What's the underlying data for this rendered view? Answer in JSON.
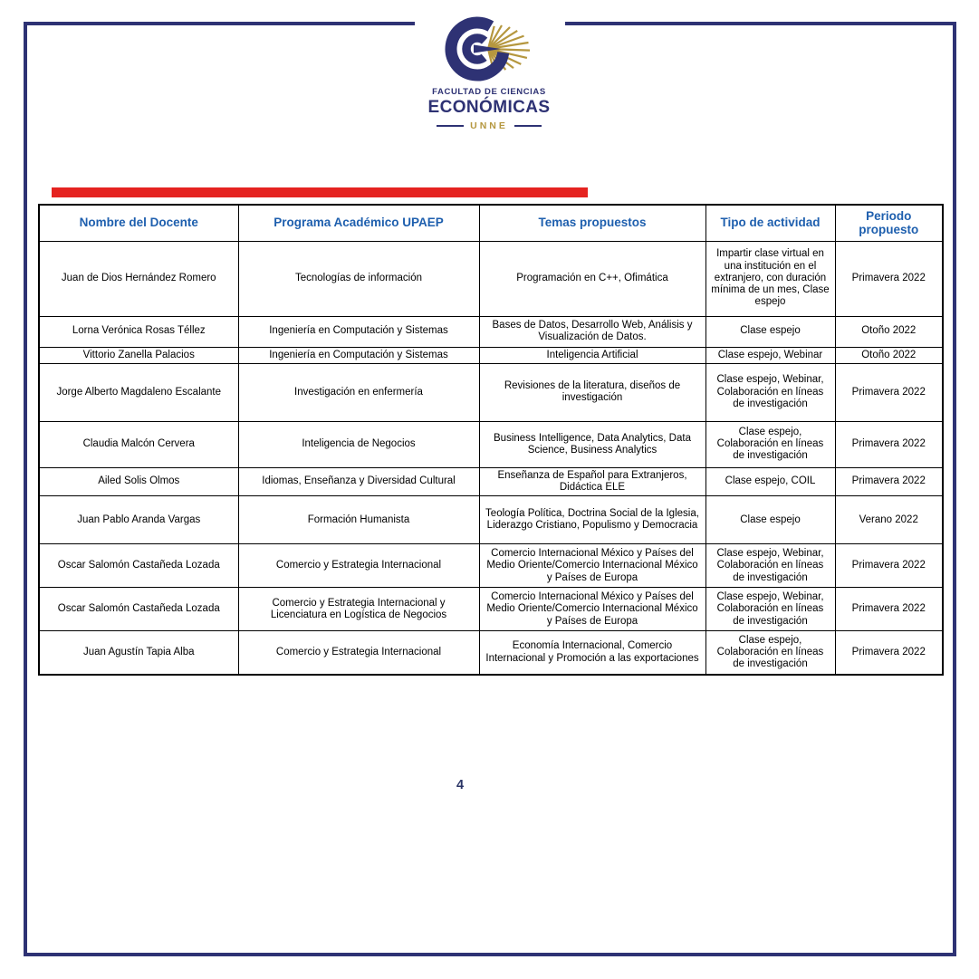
{
  "logo": {
    "line1": "FACULTAD DE CIENCIAS",
    "line2": "ECONÓMICAS",
    "line3": "UNNE"
  },
  "page_number": "4",
  "colors": {
    "navy": "#2e3274",
    "gold": "#b5973f",
    "header_blue": "#1e5fae",
    "red_bar": "#e52320",
    "table_border": "#000000"
  },
  "table": {
    "headers": [
      "Nombre del Docente",
      "Programa Académico UPAEP",
      "Temas propuestos",
      "Tipo de actividad",
      "Periodo propuesto"
    ],
    "rows": [
      [
        "Juan de Dios Hernández Romero",
        "Tecnologías de información",
        "Programación en C++, Ofimática",
        "Impartir clase virtual en una institución en el extranjero, con duración mínima de un mes, Clase espejo",
        "Primavera 2022"
      ],
      [
        "Lorna Verónica Rosas Téllez",
        "Ingeniería en Computación y Sistemas",
        "Bases de Datos, Desarrollo Web, Análisis y Visualización de Datos.",
        "Clase espejo",
        "Otoño 2022"
      ],
      [
        "Vittorio Zanella Palacios",
        "Ingeniería en Computación y Sistemas",
        "Inteligencia Artificial",
        "Clase espejo, Webinar",
        "Otoño 2022"
      ],
      [
        "Jorge Alberto Magdaleno Escalante",
        "Investigación en enfermería",
        "Revisiones de la literatura, diseños de investigación",
        "Clase espejo, Webinar, Colaboración en líneas de investigación",
        "Primavera 2022"
      ],
      [
        "Claudia Malcón Cervera",
        "Inteligencia de Negocios",
        "Business Intelligence, Data Analytics, Data Science, Business Analytics",
        "Clase espejo, Colaboración en líneas de investigación",
        "Primavera 2022"
      ],
      [
        "Ailed Solis Olmos",
        "Idiomas, Enseñanza y Diversidad Cultural",
        "Enseñanza de Español para Extranjeros, Didáctica ELE",
        "Clase espejo, COIL",
        "Primavera 2022"
      ],
      [
        "Juan Pablo Aranda Vargas",
        "Formación Humanista",
        "Teología Política, Doctrina Social de la Iglesia, Liderazgo Cristiano, Populismo y Democracia",
        "Clase espejo",
        "Verano 2022"
      ],
      [
        "Oscar Salomón Castañeda Lozada",
        "Comercio y Estrategia Internacional",
        "Comercio Internacional México y Países del Medio Oriente/Comercio Internacional México y Países de Europa",
        "Clase espejo, Webinar, Colaboración en líneas de investigación",
        "Primavera 2022"
      ],
      [
        "Oscar Salomón Castañeda Lozada",
        "Comercio y Estrategia Internacional y Licenciatura en Logística de Negocios",
        "Comercio Internacional México y Países del Medio Oriente/Comercio Internacional México y Países de Europa",
        "Clase espejo, Webinar, Colaboración en líneas de investigación",
        "Primavera 2022"
      ],
      [
        "Juan Agustín Tapia Alba",
        "Comercio y Estrategia Internacional",
        "Economía Internacional, Comercio Internacional y Promoción a las exportaciones",
        "Clase espejo, Colaboración en líneas de investigación",
        "Primavera 2022"
      ]
    ]
  }
}
